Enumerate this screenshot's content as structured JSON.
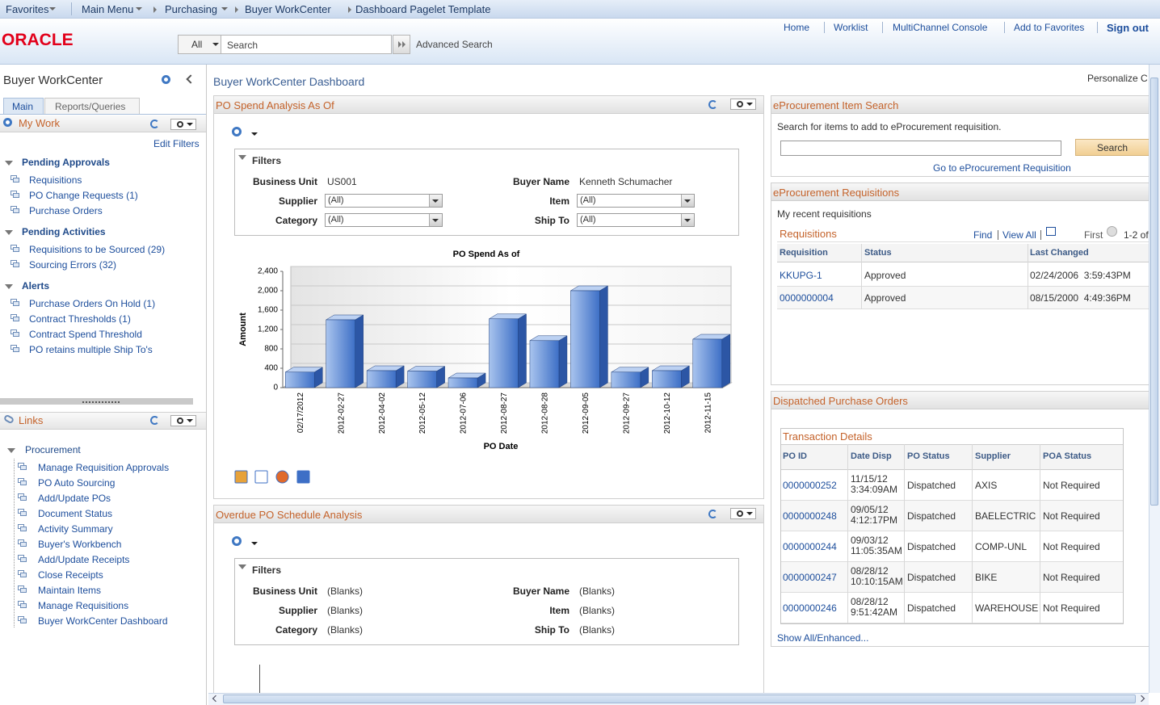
{
  "topbar": {
    "breadcrumbs": [
      "Favorites",
      "Main Menu",
      "Purchasing",
      "Buyer WorkCenter",
      "Dashboard Pagelet Template"
    ]
  },
  "header": {
    "logo": "ORACLE",
    "search_scope": "All",
    "search_placeholder": "Search",
    "advanced_search": "Advanced Search",
    "links": [
      "Home",
      "Worklist",
      "MultiChannel Console",
      "Add to Favorites",
      "Sign out"
    ]
  },
  "sidebar": {
    "title": "Buyer WorkCenter",
    "tabs": [
      "Main",
      "Reports/Queries"
    ],
    "my_work": {
      "title": "My Work",
      "edit_filters": "Edit Filters",
      "groups": [
        {
          "title": "Pending Approvals",
          "items": [
            "Requisitions",
            "PO Change Requests (1)",
            "Purchase Orders"
          ]
        },
        {
          "title": "Pending Activities",
          "items": [
            "Requisitions to be Sourced (29)",
            "Sourcing Errors (32)"
          ]
        },
        {
          "title": "Alerts",
          "items": [
            "Purchase Orders On Hold (1)",
            "Contract Thresholds (1)",
            "Contract Spend Threshold",
            "PO retains multiple Ship To's"
          ]
        }
      ]
    },
    "links": {
      "title": "Links",
      "groups": [
        {
          "title": "Procurement",
          "items": [
            "Manage Requisition Approvals",
            "PO Auto Sourcing",
            "Add/Update POs",
            "Document Status",
            "Activity Summary",
            "Buyer's Workbench",
            "Add/Update Receipts",
            "Close Receipts",
            "Maintain Items",
            "Manage Requisitions",
            "Buyer WorkCenter Dashboard"
          ]
        }
      ]
    }
  },
  "dashboard": {
    "title": "Buyer WorkCenter Dashboard",
    "personalize": "Personalize C"
  },
  "po_spend": {
    "title": "PO Spend Analysis As Of",
    "filters_title": "Filters",
    "filters": [
      [
        "Business Unit",
        "US001"
      ],
      [
        "Buyer Name",
        "Kenneth Schumacher"
      ],
      [
        "Supplier",
        "(All)"
      ],
      [
        "Item",
        "(All)"
      ],
      [
        "Category",
        "(All)"
      ],
      [
        "Ship To",
        "(All)"
      ]
    ]
  },
  "chart_data": {
    "type": "bar",
    "title": "PO Spend As of",
    "x_label": "PO Date",
    "y_label": "Amount",
    "categories": [
      "02/17/2012",
      "2012-02-27",
      "2012-04-02",
      "2012-05-12",
      "2012-07-06",
      "2012-08-27",
      "2012-08-28",
      "2012-09-05",
      "2012-09-27",
      "2012-10-12",
      "2012-11-15"
    ],
    "values": [
      320,
      1400,
      350,
      340,
      200,
      1420,
      970,
      2000,
      320,
      350,
      1000
    ],
    "color": "#4f7fd0",
    "ylim": [
      0,
      2400
    ],
    "yticks": [
      0,
      400,
      800,
      {
        "value": 1200,
        "label": "1,200"
      },
      {
        "value": 1600,
        "label": "1,600"
      },
      {
        "value": 2000,
        "label": "2,000"
      },
      {
        "value": 2400,
        "label": "2,400"
      }
    ],
    "grid": true
  },
  "overdue": {
    "title": "Overdue PO Schedule Analysis",
    "filters_title": "Filters",
    "filters": [
      [
        "Business Unit",
        "(Blanks)"
      ],
      [
        "Buyer Name",
        "(Blanks)"
      ],
      [
        "Supplier",
        "(Blanks)"
      ],
      [
        "Item",
        "(Blanks)"
      ],
      [
        "Category",
        "(Blanks)"
      ],
      [
        "Ship To",
        "(Blanks)"
      ]
    ]
  },
  "item_search": {
    "title": "eProcurement Item Search",
    "instructions": "Search for items to add to eProcurement requisition.",
    "button": "Search",
    "link": "Go to eProcurement Requisition"
  },
  "requisitions": {
    "title": "eProcurement Requisitions",
    "subtitle": "My recent requisitions",
    "grid_title": "Requisitions",
    "find": "Find",
    "view_all": "View All",
    "first": "First",
    "range": "1-2 of",
    "columns": [
      "Requisition",
      "Status",
      "Last Changed"
    ],
    "rows": [
      [
        "KKUPG-1",
        "Approved",
        "02/24/2006  3:59:43PM"
      ],
      [
        "0000000004",
        "Approved",
        "08/15/2000  4:49:36PM"
      ]
    ]
  },
  "dispatched": {
    "title": "Dispatched Purchase Orders",
    "grid_title": "Transaction Details",
    "columns": [
      "PO ID",
      "Date Disp",
      "PO Status",
      "Supplier",
      "POA Status"
    ],
    "rows": [
      [
        "0000000252",
        "11/15/12 3:34:09AM",
        "Dispatched",
        "AXIS",
        "Not Required"
      ],
      [
        "0000000248",
        "09/05/12 4:12:17PM",
        "Dispatched",
        "BAELECTRIC",
        "Not Required"
      ],
      [
        "0000000244",
        "09/03/12 11:05:35AM",
        "Dispatched",
        "COMP-UNL",
        "Not Required"
      ],
      [
        "0000000247",
        "08/28/12 10:10:15AM",
        "Dispatched",
        "BIKE",
        "Not Required"
      ],
      [
        "0000000246",
        "08/28/12 9:51:42AM",
        "Dispatched",
        "WAREHOUSE",
        "Not Required"
      ]
    ],
    "show_all": "Show All/Enhanced..."
  }
}
